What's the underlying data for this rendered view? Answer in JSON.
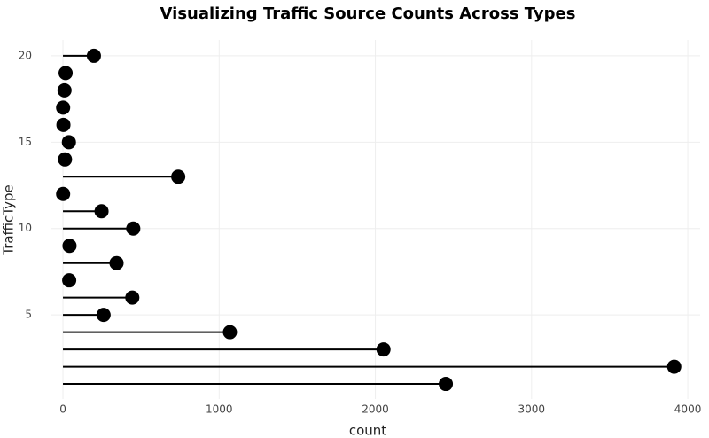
{
  "chart_data": {
    "type": "lollipop",
    "orientation": "horizontal",
    "title": "Visualizing Traffic Source Counts Across Types",
    "x_label": "count",
    "y_label": "TrafficType",
    "y": [
      1,
      2,
      3,
      4,
      5,
      6,
      7,
      8,
      9,
      10,
      11,
      12,
      13,
      14,
      15,
      16,
      17,
      18,
      19,
      20
    ],
    "values": [
      2451,
      3913,
      2052,
      1069,
      260,
      444,
      40,
      343,
      42,
      450,
      247,
      1,
      738,
      13,
      38,
      3,
      1,
      10,
      17,
      198
    ],
    "color": "#000000",
    "xlim": [
      -74,
      4079
    ],
    "xticks": [
      0,
      1000,
      2000,
      3000,
      4000
    ],
    "ylim": [
      0.13,
      20.92
    ],
    "yticks": [
      5,
      10,
      15,
      20
    ],
    "grid": true
  }
}
